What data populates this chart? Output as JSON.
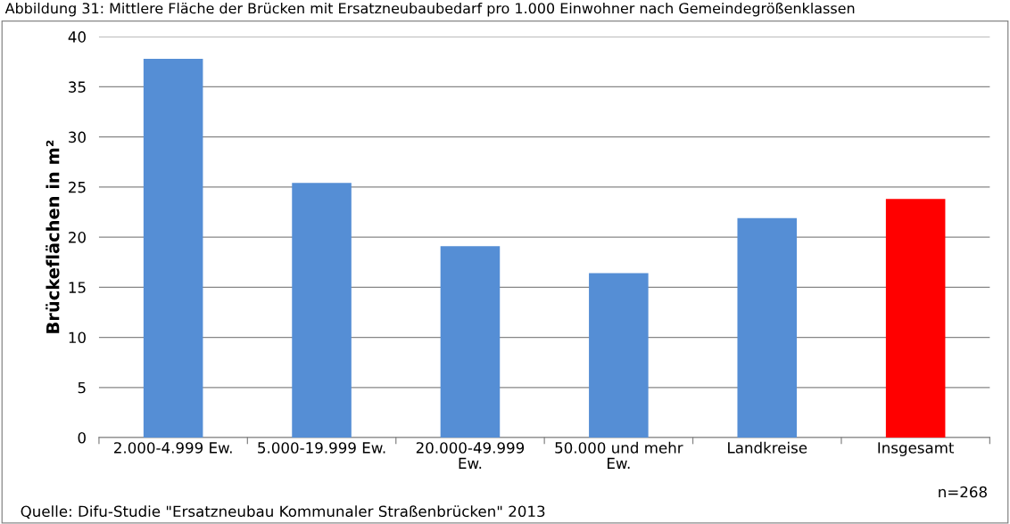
{
  "chart_data": {
    "type": "bar",
    "title": "Abbildung 31: Mittlere Fläche der Brücken mit Ersatzneubaubedarf pro 1.000 Einwohner nach Gemeindegrößenklassen",
    "ylabel": "Brückeflächen in m²",
    "categories": [
      "2.000-4.999 Ew.",
      "5.000-19.999 Ew.",
      "20.000-49.999 Ew.",
      "50.000 und mehr Ew.",
      "Landkreise",
      "Insgesamt"
    ],
    "values": [
      37.8,
      25.4,
      19.1,
      16.4,
      21.9,
      23.8
    ],
    "colors": [
      "#558ed5",
      "#558ed5",
      "#558ed5",
      "#558ed5",
      "#558ed5",
      "#ff0000"
    ],
    "ylim": [
      0,
      40
    ],
    "yticks": [
      0,
      5,
      10,
      15,
      20,
      25,
      30,
      35,
      40
    ],
    "grid": "y",
    "annotations": [
      "n=268",
      "Quelle: Difu-Studie \"Ersatzneubau Kommunaler Straßenbrücken\" 2013"
    ]
  }
}
